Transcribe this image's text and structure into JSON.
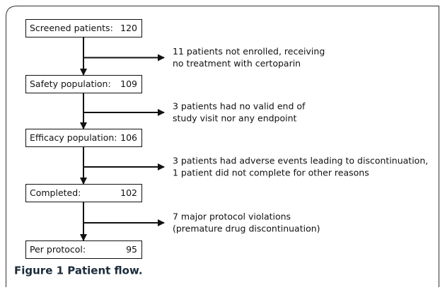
{
  "nodes": [
    {
      "label": "Screened patients:",
      "count": 120
    },
    {
      "label": "Safety population:",
      "count": 109
    },
    {
      "label": "Efficacy population:",
      "count": 106
    },
    {
      "label": "Completed:",
      "count": 102
    },
    {
      "label": "Per protocol:",
      "count": 95
    }
  ],
  "exclusions": [
    {
      "lines": [
        "11 patients not enrolled, receiving",
        "no treatment with certoparin"
      ]
    },
    {
      "lines": [
        "3 patients had no valid end of",
        "study visit nor any endpoint"
      ]
    },
    {
      "lines": [
        "3 patients had adverse events leading to discontinuation,",
        "1 patient did not complete for other reasons"
      ]
    },
    {
      "lines": [
        "7 major protocol violations",
        "(premature drug discontinuation)"
      ]
    }
  ],
  "caption": "Figure 1 Patient flow."
}
